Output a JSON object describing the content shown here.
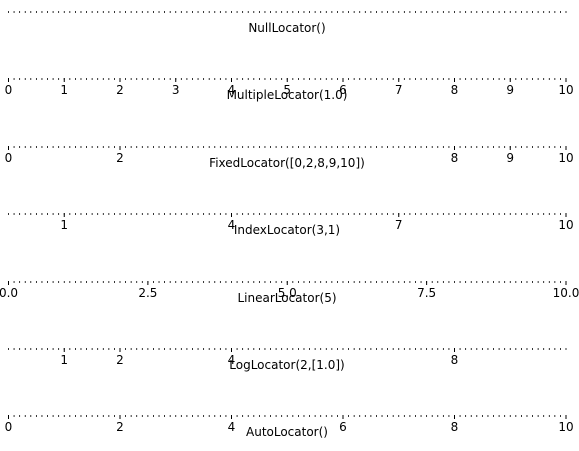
{
  "chart_data": [
    {
      "type": "axis",
      "title": "NullLocator()",
      "xlim": [
        0,
        10
      ],
      "major_ticks": [],
      "major_tick_labels": [],
      "minor_tick_spacing": 0.1
    },
    {
      "type": "axis",
      "title": "MultipleLocator(1.0)",
      "xlim": [
        0,
        10
      ],
      "major_ticks": [
        0,
        1,
        2,
        3,
        4,
        5,
        6,
        7,
        8,
        9,
        10
      ],
      "major_tick_labels": [
        "0",
        "1",
        "2",
        "3",
        "4",
        "5",
        "6",
        "7",
        "8",
        "9",
        "10"
      ],
      "minor_tick_spacing": 0.1
    },
    {
      "type": "axis",
      "title": "FixedLocator([0,2,8,9,10])",
      "xlim": [
        0,
        10
      ],
      "major_ticks": [
        0,
        2,
        8,
        9,
        10
      ],
      "major_tick_labels": [
        "0",
        "2",
        "8",
        "9",
        "10"
      ],
      "minor_tick_spacing": 0.1
    },
    {
      "type": "axis",
      "title": "IndexLocator(3,1)",
      "xlim": [
        0,
        10
      ],
      "major_ticks": [
        1,
        4,
        7,
        10
      ],
      "major_tick_labels": [
        "1",
        "4",
        "7",
        "10"
      ],
      "minor_tick_spacing": 0.1
    },
    {
      "type": "axis",
      "title": "LinearLocator(5)",
      "xlim": [
        0,
        10
      ],
      "major_ticks": [
        0,
        2.5,
        5,
        7.5,
        10
      ],
      "major_tick_labels": [
        "0.0",
        "2.5",
        "5.0",
        "7.5",
        "10.0"
      ],
      "minor_tick_spacing": 0.1
    },
    {
      "type": "axis",
      "title": "LogLocator(2,[1.0])",
      "xlim": [
        0,
        10
      ],
      "major_ticks": [
        1,
        2,
        4,
        8
      ],
      "major_tick_labels": [
        "1",
        "2",
        "4",
        "8"
      ],
      "minor_tick_spacing": 0.1
    },
    {
      "type": "axis",
      "title": "AutoLocator()",
      "xlim": [
        0,
        10
      ],
      "major_ticks": [
        0,
        2,
        4,
        6,
        8,
        10
      ],
      "major_tick_labels": [
        "0",
        "2",
        "4",
        "6",
        "8",
        "10"
      ],
      "minor_tick_spacing": 0.1
    }
  ]
}
